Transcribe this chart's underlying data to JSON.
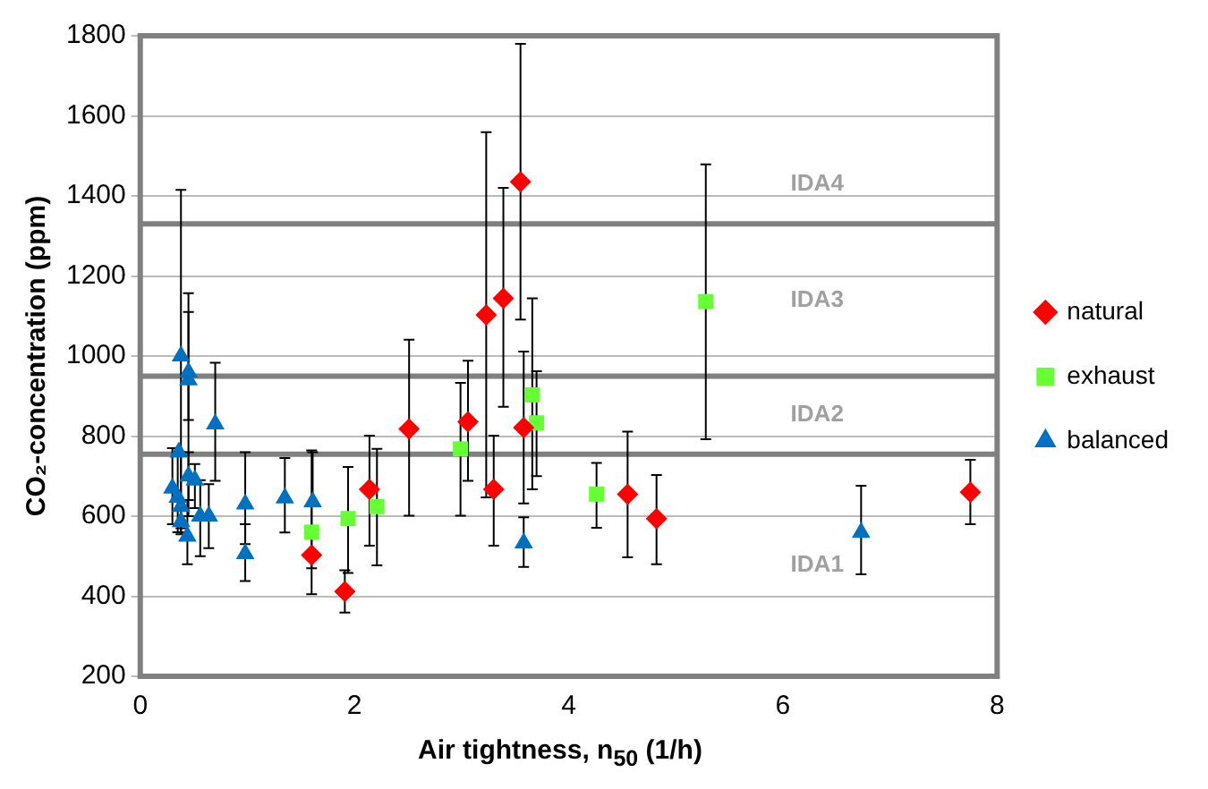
{
  "chart_data": {
    "type": "scatter",
    "xlabel": "Air tightness, n$_{50}$ (1/h)",
    "ylabel": "CO₂-concentration (ppm)",
    "xlim": [
      0,
      8
    ],
    "xticks": [
      0,
      2,
      4,
      6,
      8
    ],
    "ylim": [
      200,
      1800
    ],
    "yticks": [
      200,
      400,
      600,
      800,
      1000,
      1200,
      1400,
      1600,
      1800
    ],
    "grid": "y",
    "legend": "right",
    "ref_lines": [
      {
        "axis": "y",
        "value": 755,
        "color": "#808080"
      },
      {
        "axis": "y",
        "value": 950,
        "color": "#808080"
      },
      {
        "axis": "y",
        "value": 1330,
        "color": "#808080"
      }
    ],
    "annotations": [
      "IDA1",
      "IDA2",
      "IDA3",
      "IDA4"
    ],
    "series": [
      {
        "name": "natural",
        "color": "#ff0000",
        "marker": "diamond",
        "x": [
          1.6,
          1.91,
          2.14,
          2.51,
          3.06,
          3.23,
          3.3,
          3.39,
          3.55,
          3.58,
          4.55,
          4.82,
          7.75
        ],
        "values": [
          503,
          412,
          667,
          818,
          836,
          1103,
          667,
          1144,
          1435,
          821,
          655,
          594,
          660
        ],
        "errors": [
          [
            405,
            630
          ],
          [
            359,
            465
          ],
          [
            526,
            801
          ],
          [
            601,
            1041
          ],
          [
            688,
            988
          ],
          [
            647,
            1559
          ],
          [
            526,
            801
          ],
          [
            873,
            1420
          ],
          [
            1091,
            1780
          ],
          [
            632,
            1011
          ],
          [
            497,
            811
          ],
          [
            480,
            703
          ],
          [
            580,
            741
          ]
        ]
      },
      {
        "name": "exhaust",
        "color": "#66ff33",
        "marker": "square",
        "x": [
          1.6,
          1.94,
          2.21,
          2.99,
          3.66,
          3.7,
          4.26,
          5.28
        ],
        "values": [
          560,
          594,
          624,
          768,
          903,
          833,
          655,
          1136
        ],
        "errors": [
          [
            470,
            764
          ],
          [
            458,
            723
          ],
          [
            477,
            768
          ],
          [
            601,
            933
          ],
          [
            667,
            1144
          ],
          [
            700,
            962
          ],
          [
            571,
            733
          ],
          [
            792,
            1479
          ]
        ]
      },
      {
        "name": "balanced",
        "color": "#0070c0",
        "marker": "triangle",
        "x": [
          0.38,
          0.45,
          0.45,
          0.7,
          0.36,
          0.3,
          0.45,
          0.51,
          0.35,
          0.38,
          0.38,
          0.44,
          0.56,
          0.64,
          0.98,
          0.98,
          1.35,
          1.61,
          3.58,
          6.73
        ],
        "values": [
          1000,
          960,
          940,
          830,
          760,
          670,
          700,
          690,
          647,
          624,
          586,
          550,
          600,
          600,
          630,
          506,
          645,
          636,
          533,
          559
        ],
        "errors": [
          [
            560,
            1415
          ],
          [
            600,
            1157
          ],
          [
            840,
            1110
          ],
          [
            688,
            983
          ],
          null,
          [
            580,
            770
          ],
          [
            640,
            760
          ],
          [
            620,
            730
          ],
          [
            560,
            760
          ],
          [
            570,
            760
          ],
          [
            555,
            620
          ],
          [
            480,
            640
          ],
          [
            500,
            690
          ],
          [
            520,
            680
          ],
          [
            530,
            760
          ],
          [
            438,
            580
          ],
          [
            559,
            745
          ],
          [
            636,
            760
          ],
          [
            473,
            597
          ],
          [
            455,
            676
          ]
        ]
      }
    ]
  }
}
